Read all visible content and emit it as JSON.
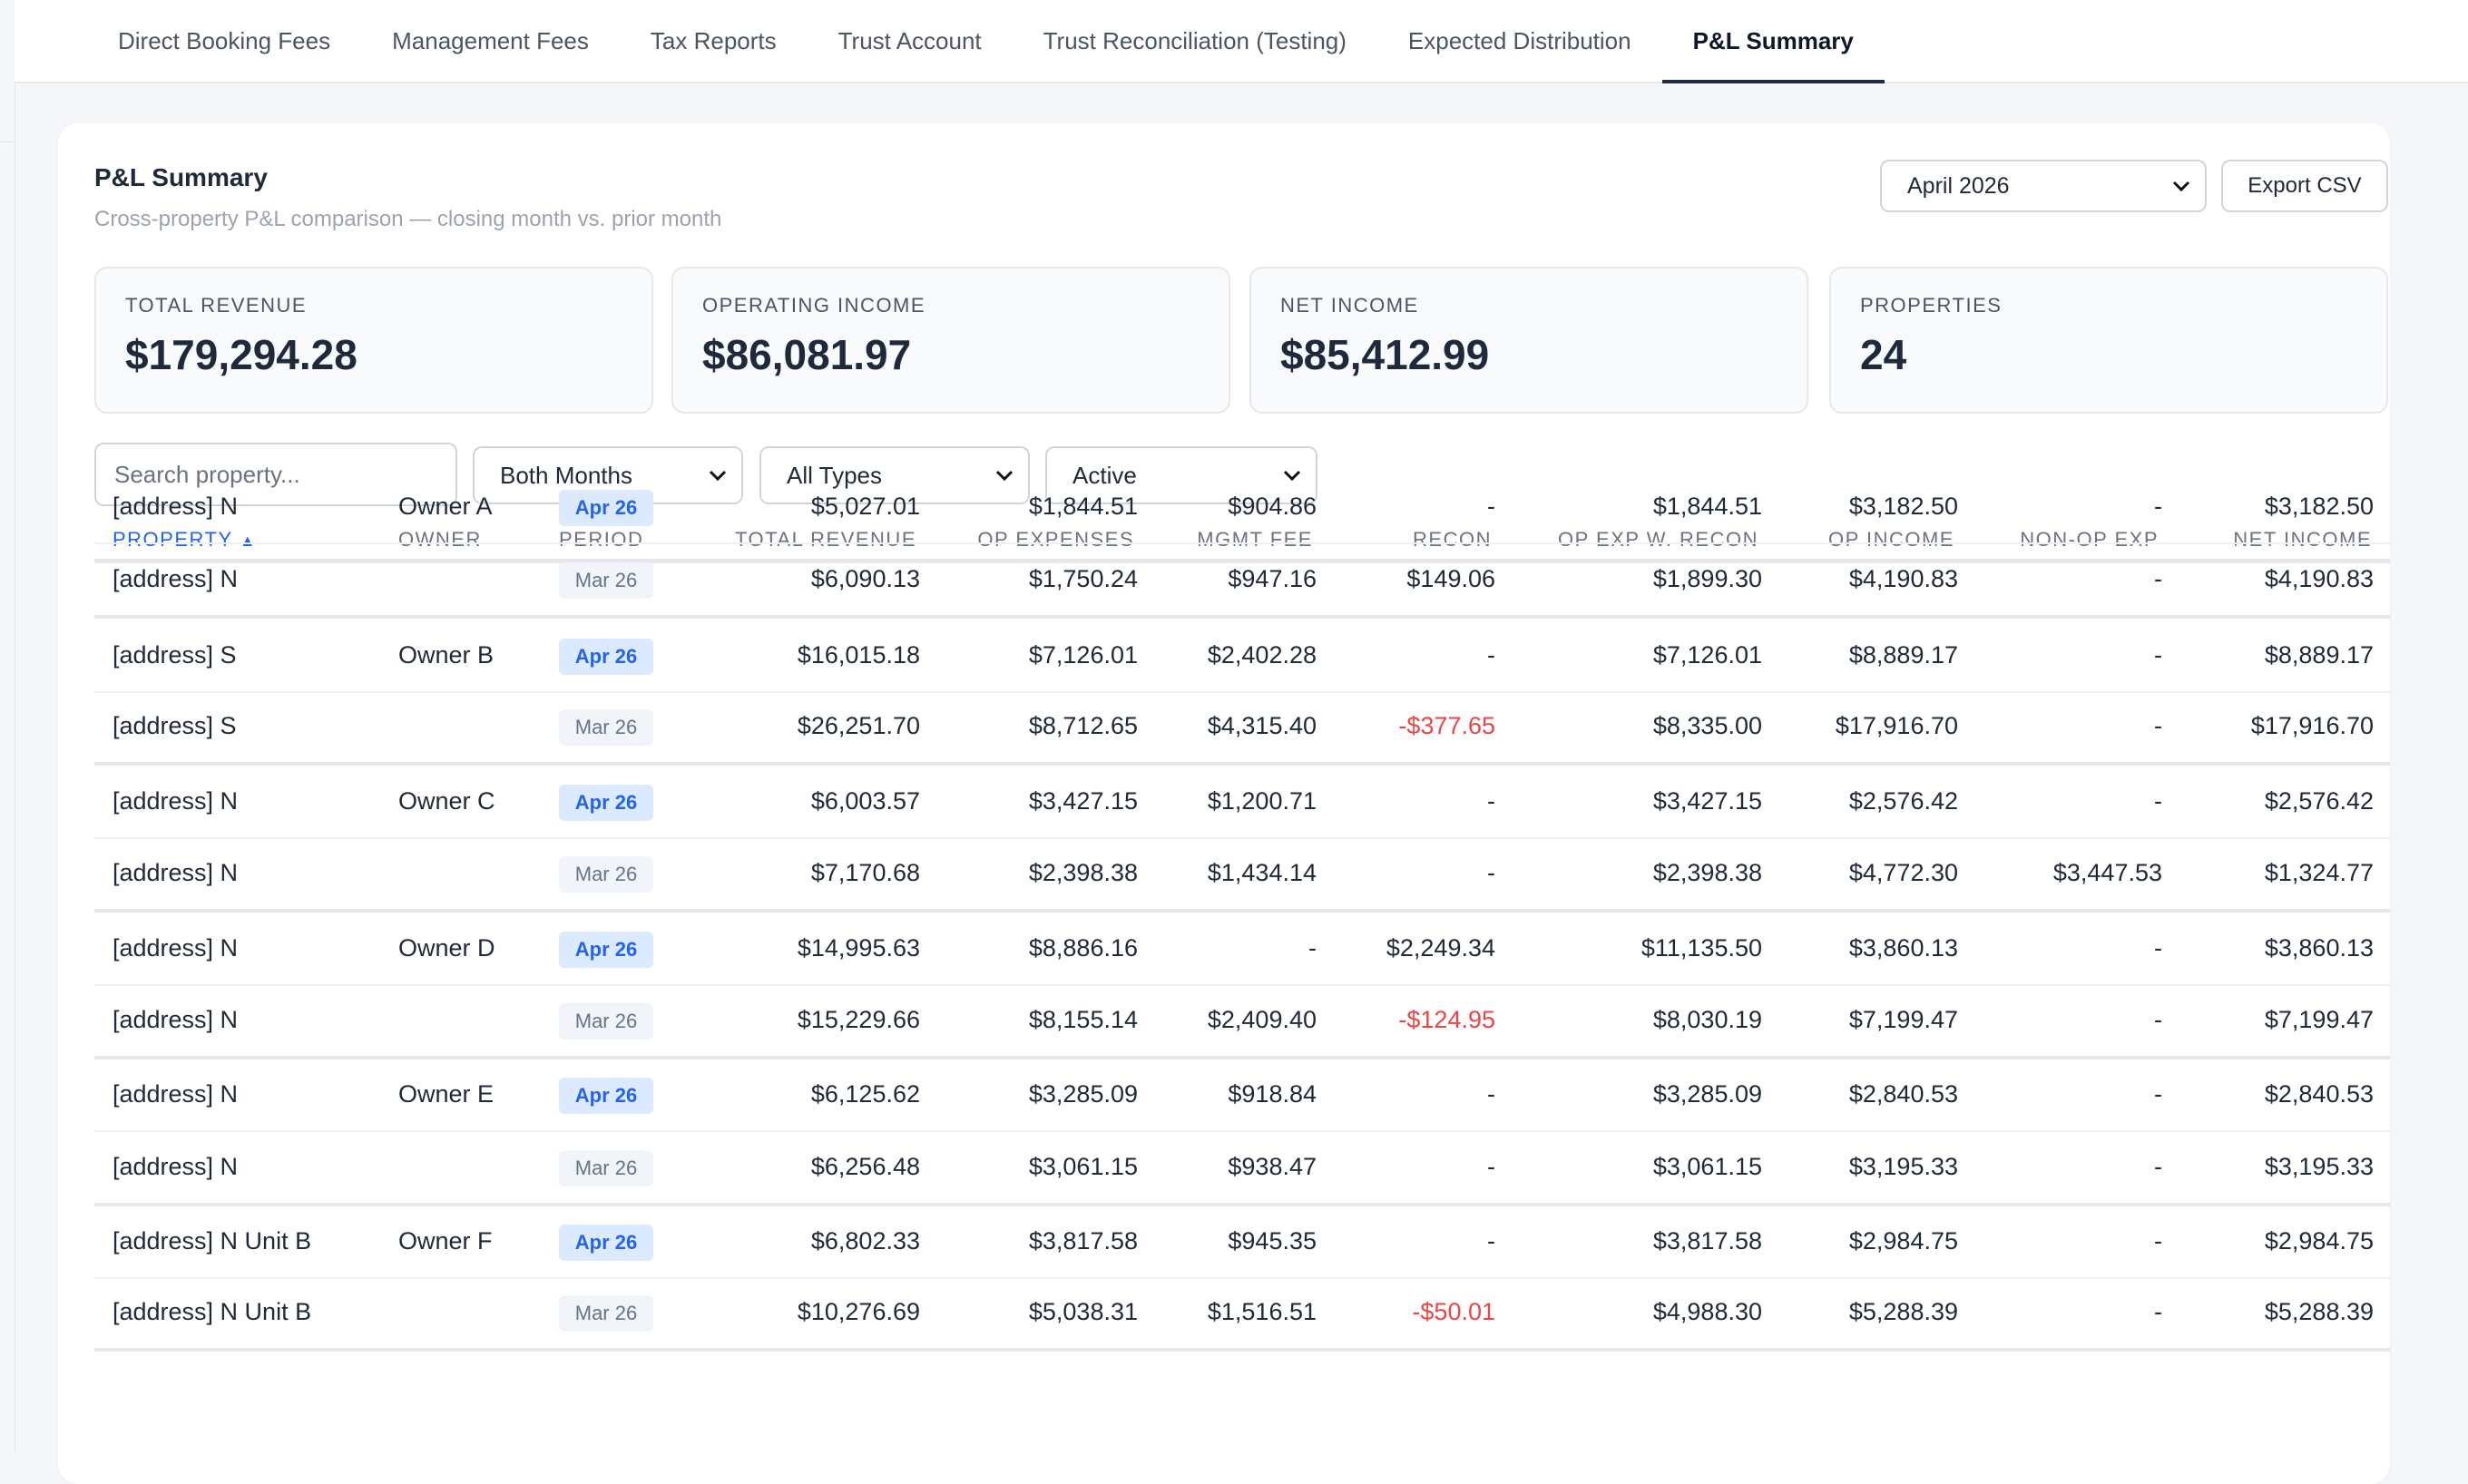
{
  "tabs": [
    {
      "label": "Direct Booking Fees",
      "active": false
    },
    {
      "label": "Management Fees",
      "active": false
    },
    {
      "label": "Tax Reports",
      "active": false
    },
    {
      "label": "Trust Account",
      "active": false
    },
    {
      "label": "Trust Reconciliation (Testing)",
      "active": false
    },
    {
      "label": "Expected Distribution",
      "active": false
    },
    {
      "label": "P&L Summary",
      "active": true
    }
  ],
  "header": {
    "title": "P&L Summary",
    "subtitle": "Cross-property P&L comparison — closing month vs. prior month",
    "month_select": "April 2026",
    "export_label": "Export CSV"
  },
  "stats": [
    {
      "label": "TOTAL REVENUE",
      "value": "$179,294.28"
    },
    {
      "label": "OPERATING INCOME",
      "value": "$86,081.97"
    },
    {
      "label": "NET INCOME",
      "value": "$85,412.99"
    },
    {
      "label": "PROPERTIES",
      "value": "24"
    }
  ],
  "filters": {
    "search_placeholder": "Search property...",
    "months": "Both Months",
    "types": "All Types",
    "status": "Active"
  },
  "table": {
    "sort_indicator": "▲",
    "columns": [
      "PROPERTY",
      "OWNER",
      "PERIOD",
      "TOTAL REVENUE",
      "OP EXPENSES",
      "MGMT FEE",
      "RECON",
      "OP EXP W. RECON",
      "OP INCOME",
      "NON-OP EXP",
      "NET INCOME"
    ],
    "rows": [
      [
        "[address] N",
        "Owner A",
        "Apr 26",
        "$5,027.01",
        "$1,844.51",
        "$904.86",
        "-",
        "$1,844.51",
        "$3,182.50",
        "-",
        "$3,182.50"
      ],
      [
        "[address] N",
        "",
        "Mar 26",
        "$6,090.13",
        "$1,750.24",
        "$947.16",
        "$149.06",
        "$1,899.30",
        "$4,190.83",
        "-",
        "$4,190.83"
      ],
      [
        "[address] S",
        "Owner B",
        "Apr 26",
        "$16,015.18",
        "$7,126.01",
        "$2,402.28",
        "-",
        "$7,126.01",
        "$8,889.17",
        "-",
        "$8,889.17"
      ],
      [
        "[address] S",
        "",
        "Mar 26",
        "$26,251.70",
        "$8,712.65",
        "$4,315.40",
        "-$377.65",
        "$8,335.00",
        "$17,916.70",
        "-",
        "$17,916.70"
      ],
      [
        "[address] N",
        "Owner C",
        "Apr 26",
        "$6,003.57",
        "$3,427.15",
        "$1,200.71",
        "-",
        "$3,427.15",
        "$2,576.42",
        "-",
        "$2,576.42"
      ],
      [
        "[address] N",
        "",
        "Mar 26",
        "$7,170.68",
        "$2,398.38",
        "$1,434.14",
        "-",
        "$2,398.38",
        "$4,772.30",
        "$3,447.53",
        "$1,324.77"
      ],
      [
        "[address] N",
        "Owner D",
        "Apr 26",
        "$14,995.63",
        "$8,886.16",
        "-",
        "$2,249.34",
        "$11,135.50",
        "$3,860.13",
        "-",
        "$3,860.13"
      ],
      [
        "[address] N",
        "",
        "Mar 26",
        "$15,229.66",
        "$8,155.14",
        "$2,409.40",
        "-$124.95",
        "$8,030.19",
        "$7,199.47",
        "-",
        "$7,199.47"
      ],
      [
        "[address] N",
        "Owner E",
        "Apr 26",
        "$6,125.62",
        "$3,285.09",
        "$918.84",
        "-",
        "$3,285.09",
        "$2,840.53",
        "-",
        "$2,840.53"
      ],
      [
        "[address] N",
        "",
        "Mar 26",
        "$6,256.48",
        "$3,061.15",
        "$938.47",
        "-",
        "$3,061.15",
        "$3,195.33",
        "-",
        "$3,195.33"
      ],
      [
        "[address] N Unit B",
        "Owner F",
        "Apr 26",
        "$6,802.33",
        "$3,817.58",
        "$945.35",
        "-",
        "$3,817.58",
        "$2,984.75",
        "-",
        "$2,984.75"
      ],
      [
        "[address] N Unit B",
        "",
        "Mar 26",
        "$10,276.69",
        "$5,038.31",
        "$1,516.51",
        "-$50.01",
        "$4,988.30",
        "$5,288.39",
        "-",
        "$5,288.39"
      ]
    ]
  }
}
